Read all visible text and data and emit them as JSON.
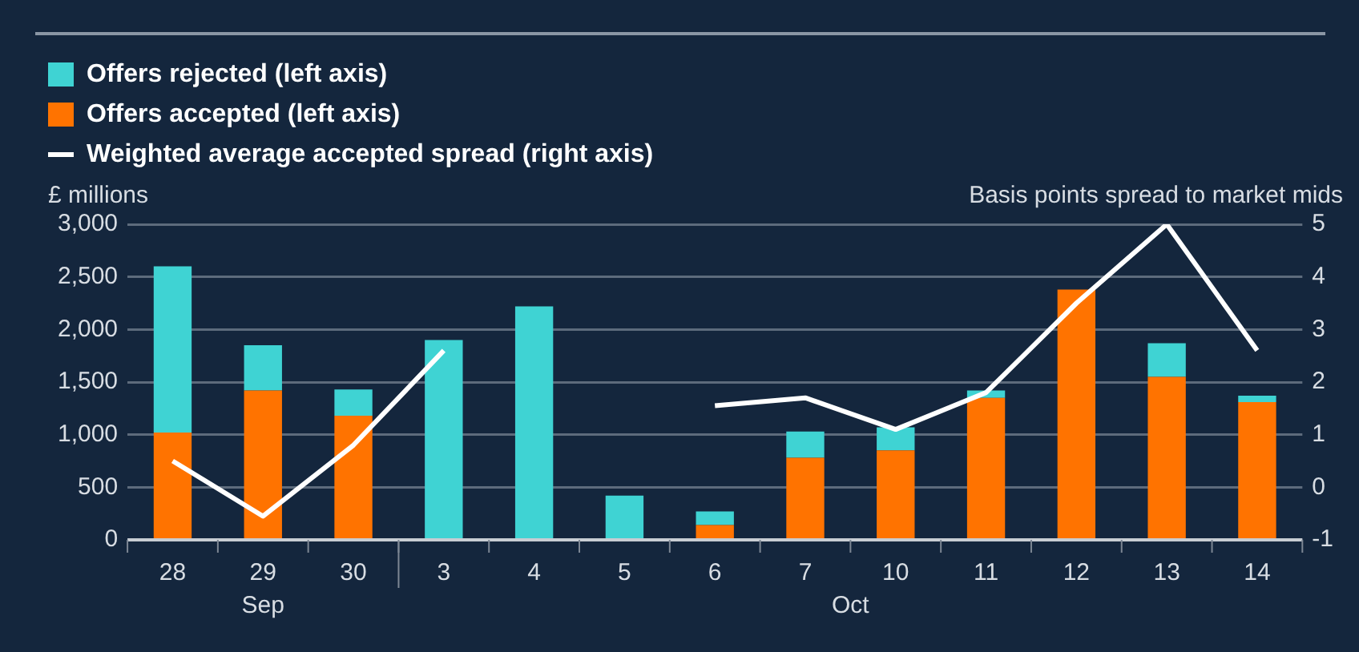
{
  "chart_data": {
    "type": "bar",
    "stacked": true,
    "legend": "top left",
    "grid": "y",
    "ylabel": "£ millions",
    "y2label": "Basis points spread to market mids",
    "categories": [
      "28",
      "29",
      "30",
      "3",
      "4",
      "5",
      "6",
      "7",
      "10",
      "11",
      "12",
      "13",
      "14"
    ],
    "series": [
      {
        "name": "Offers accepted (left axis)",
        "color": "#ff7300",
        "values": [
          1020,
          1420,
          1180,
          0,
          0,
          0,
          140,
          780,
          850,
          1350,
          2380,
          1550,
          1310
        ]
      },
      {
        "name": "Offers rejected (left axis)",
        "color": "#3fd3d3",
        "values": [
          1580,
          430,
          250,
          1900,
          2220,
          420,
          130,
          250,
          220,
          70,
          0,
          320,
          60
        ]
      },
      {
        "name": "Weighted average accepted spread (right axis)",
        "type": "line",
        "axis": "y2",
        "color": "#ffffff",
        "values": [
          0.5,
          -0.55,
          0.8,
          2.6,
          null,
          null,
          1.55,
          1.7,
          1.1,
          1.8,
          3.5,
          5.0,
          2.6
        ]
      }
    ],
    "ylim": [
      0,
      3000
    ],
    "yticks": [
      {
        "value": 0,
        "label": "0"
      },
      {
        "value": 500,
        "label": "500"
      },
      {
        "value": 1000,
        "label": "1,000"
      },
      {
        "value": 1500,
        "label": "1,500"
      },
      {
        "value": 2000,
        "label": "2,000"
      },
      {
        "value": 2500,
        "label": "2,500"
      },
      {
        "value": 3000,
        "label": "3,000"
      }
    ],
    "y2lim": [
      -1,
      5
    ],
    "y2ticks": [
      -1,
      0,
      1,
      2,
      3,
      4,
      5
    ],
    "annotations": [
      "Sep",
      "Oct"
    ]
  }
}
